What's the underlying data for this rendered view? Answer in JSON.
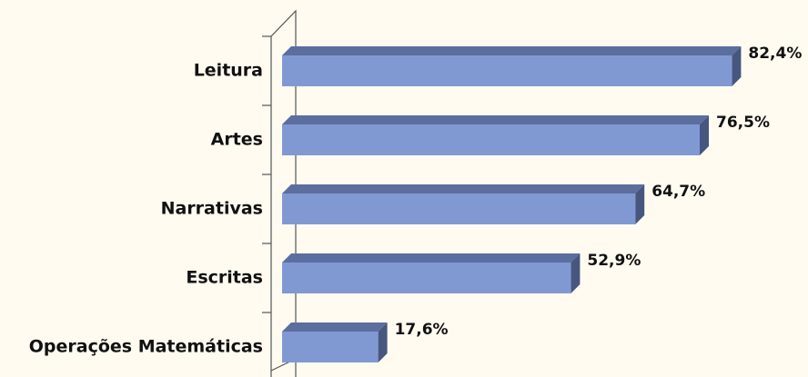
{
  "chart_data": {
    "type": "bar",
    "orientation": "horizontal",
    "categories": [
      "Leitura",
      "Artes",
      "Narrativas",
      "Escritas",
      "Operações Matemáticas"
    ],
    "values": [
      82.4,
      76.5,
      64.7,
      52.9,
      17.6
    ],
    "value_labels": [
      "82,4%",
      "76,5%",
      "64,7%",
      "52,9%",
      "17,6%"
    ],
    "color": "#8199d3"
  }
}
